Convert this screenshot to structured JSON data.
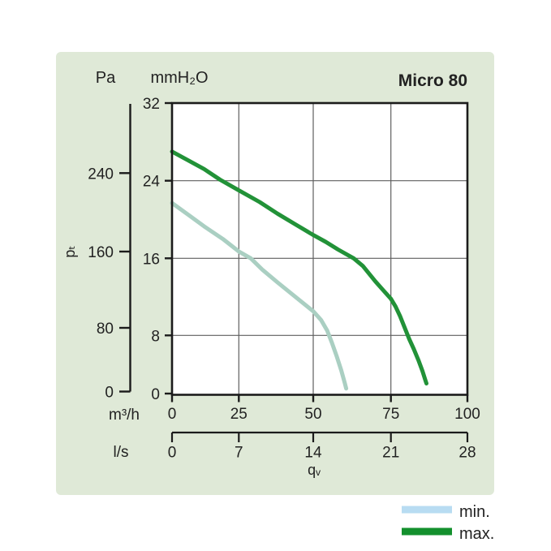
{
  "header": {
    "pa_unit": "Pa",
    "mm_unit": "mmH₂O",
    "title": "Micro 80"
  },
  "axis_titles": {
    "pressure": "pₜ",
    "flow": "qᵥ",
    "flow_unit_primary": "m³/h",
    "flow_unit_secondary": "l/s"
  },
  "legend": {
    "items": [
      {
        "label": "min.",
        "color": "#b8dcf2"
      },
      {
        "label": "max.",
        "color": "#13902d"
      }
    ]
  },
  "colors": {
    "panel": "#dfe9d7",
    "plot_bg": "#ffffff",
    "frame": "#1b1b1b",
    "grid": "#5f5f5f",
    "text": "#222222",
    "min_curve": "#aacfc2",
    "max_curve": "#229238"
  },
  "chart_data": {
    "type": "line",
    "title": "Micro 80",
    "grid": true,
    "legend_position": "bottom-right-outside",
    "x_axis": {
      "unit_primary": "m³/h",
      "ticks_primary": [
        0,
        25,
        50,
        75,
        100
      ],
      "unit_secondary": "l/s",
      "ticks_secondary": [
        0,
        7,
        14,
        21,
        28
      ],
      "axis_title": "qᵥ",
      "range_primary": [
        0,
        100
      ]
    },
    "y_axis": {
      "unit_primary": "Pa",
      "ticks_primary": [
        240,
        160,
        80,
        0
      ],
      "unit_secondary": "mmH₂O",
      "ticks_secondary": [
        32,
        24,
        16,
        8,
        0
      ],
      "axis_title": "pₜ",
      "range_secondary": [
        0,
        32
      ]
    },
    "series": [
      {
        "name": "min.",
        "color": "#aacfc2",
        "x_unit": "m³/h",
        "y_unit": "mmH₂O",
        "points": [
          [
            0,
            21.7
          ],
          [
            6,
            20.5
          ],
          [
            12,
            19.3
          ],
          [
            19,
            18.0
          ],
          [
            25,
            16.7
          ],
          [
            29,
            16.0
          ],
          [
            33,
            14.8
          ],
          [
            38,
            13.5
          ],
          [
            44,
            12.0
          ],
          [
            50,
            10.5
          ],
          [
            52.5,
            9.6
          ],
          [
            54.5,
            8.5
          ],
          [
            56,
            7.0
          ],
          [
            57.5,
            5.2
          ],
          [
            59,
            3.2
          ],
          [
            60.2,
            1.4
          ],
          [
            60.6,
            0.7
          ]
        ]
      },
      {
        "name": "max.",
        "color": "#229238",
        "x_unit": "m³/h",
        "y_unit": "mmH₂O",
        "points": [
          [
            0,
            27.0
          ],
          [
            6,
            26.1
          ],
          [
            12,
            25.2
          ],
          [
            18,
            24.1
          ],
          [
            25,
            23.0
          ],
          [
            32,
            21.8
          ],
          [
            38,
            20.6
          ],
          [
            44,
            19.5
          ],
          [
            50,
            18.4
          ],
          [
            54,
            17.7
          ],
          [
            58,
            16.9
          ],
          [
            63,
            16.0
          ],
          [
            66,
            15.2
          ],
          [
            68,
            14.4
          ],
          [
            70,
            13.6
          ],
          [
            72.5,
            12.7
          ],
          [
            75,
            11.8
          ],
          [
            76.5,
            11.0
          ],
          [
            78,
            10.0
          ],
          [
            79.5,
            8.8
          ],
          [
            81,
            7.5
          ],
          [
            82.5,
            6.1
          ],
          [
            84,
            4.6
          ],
          [
            85.3,
            3.1
          ],
          [
            86.3,
            1.8
          ],
          [
            86.6,
            1.4
          ]
        ]
      }
    ]
  }
}
